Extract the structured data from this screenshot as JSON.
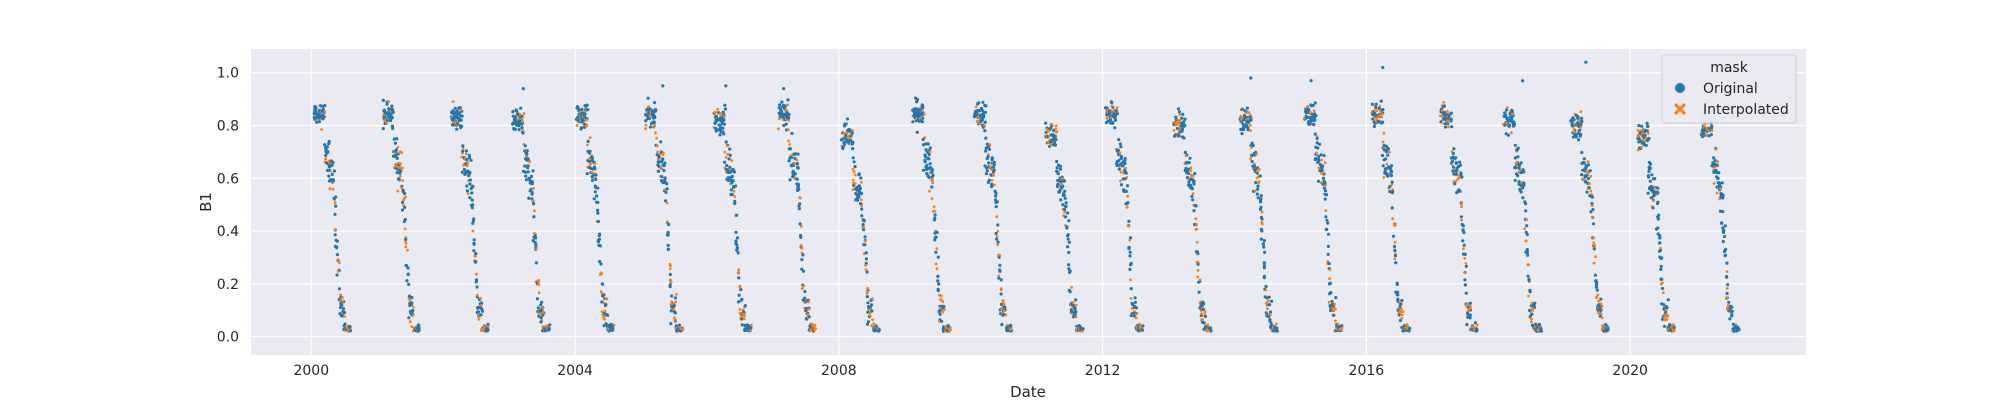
{
  "chart_data": {
    "type": "scatter",
    "title": "",
    "xlabel": "Date",
    "ylabel": "B1",
    "x_axis": {
      "type": "date",
      "min": "1999-02-01",
      "max": "2022-09-01",
      "ticks": [
        "2000",
        "2004",
        "2008",
        "2012",
        "2016",
        "2020"
      ]
    },
    "y_axis": {
      "min": -0.07,
      "max": 1.09,
      "ticks": [
        "0.0",
        "0.2",
        "0.4",
        "0.6",
        "0.8",
        "1.0"
      ]
    },
    "grid": true,
    "background": "#eaeaf2",
    "legend": {
      "position": "top-right",
      "title": "mask",
      "entries": [
        {
          "label": "Original",
          "marker": "circle",
          "color": "#1f77b4"
        },
        {
          "label": "Interpolated",
          "marker": "x",
          "color": "#ff7f0e"
        }
      ]
    },
    "series": [
      {
        "name": "Original",
        "color": "#1f77b4",
        "marker": "circle",
        "seasonal_pattern": "annual peak ~0.8-0.9 in spring, decline through summer, ~0.0-0.05 in autumn/winter"
      },
      {
        "name": "Interpolated",
        "color": "#ff7f0e",
        "marker": "x",
        "seasonal_pattern": "fills gaps within each annual cycle"
      }
    ],
    "cycles": [
      {
        "start": "2000-01-15",
        "peak": 0.88
      },
      {
        "start": "2001-02-01",
        "peak": 0.88
      },
      {
        "start": "2002-02-15",
        "peak": 0.87
      },
      {
        "start": "2003-01-20",
        "peak": 0.86
      },
      {
        "start": "2004-01-10",
        "peak": 0.87
      },
      {
        "start": "2005-01-25",
        "peak": 0.88
      },
      {
        "start": "2006-02-10",
        "peak": 0.86
      },
      {
        "start": "2007-02-01",
        "peak": 0.88
      },
      {
        "start": "2008-01-20",
        "peak": 0.8
      },
      {
        "start": "2009-02-15",
        "peak": 0.88
      },
      {
        "start": "2010-01-25",
        "peak": 0.88
      },
      {
        "start": "2011-02-20",
        "peak": 0.8
      },
      {
        "start": "2012-01-20",
        "peak": 0.89
      },
      {
        "start": "2013-02-01",
        "peak": 0.84
      },
      {
        "start": "2014-02-01",
        "peak": 0.86
      },
      {
        "start": "2015-01-25",
        "peak": 0.88
      },
      {
        "start": "2016-02-01",
        "peak": 0.88
      },
      {
        "start": "2017-02-15",
        "peak": 0.87
      },
      {
        "start": "2018-02-01",
        "peak": 0.86
      },
      {
        "start": "2019-02-10",
        "peak": 0.84
      },
      {
        "start": "2020-02-10",
        "peak": 0.8
      },
      {
        "start": "2021-02-01",
        "peak": 0.84
      }
    ],
    "outliers": [
      {
        "date": "2003-03-20",
        "value": 0.94
      },
      {
        "date": "2005-05-01",
        "value": 0.95
      },
      {
        "date": "2006-04-15",
        "value": 0.95
      },
      {
        "date": "2007-03-01",
        "value": 0.94
      },
      {
        "date": "2014-04-01",
        "value": 0.98
      },
      {
        "date": "2015-03-01",
        "value": 0.97
      },
      {
        "date": "2016-04-01",
        "value": 1.02
      },
      {
        "date": "2018-05-15",
        "value": 0.97
      },
      {
        "date": "2019-05-01",
        "value": 1.04
      }
    ]
  }
}
